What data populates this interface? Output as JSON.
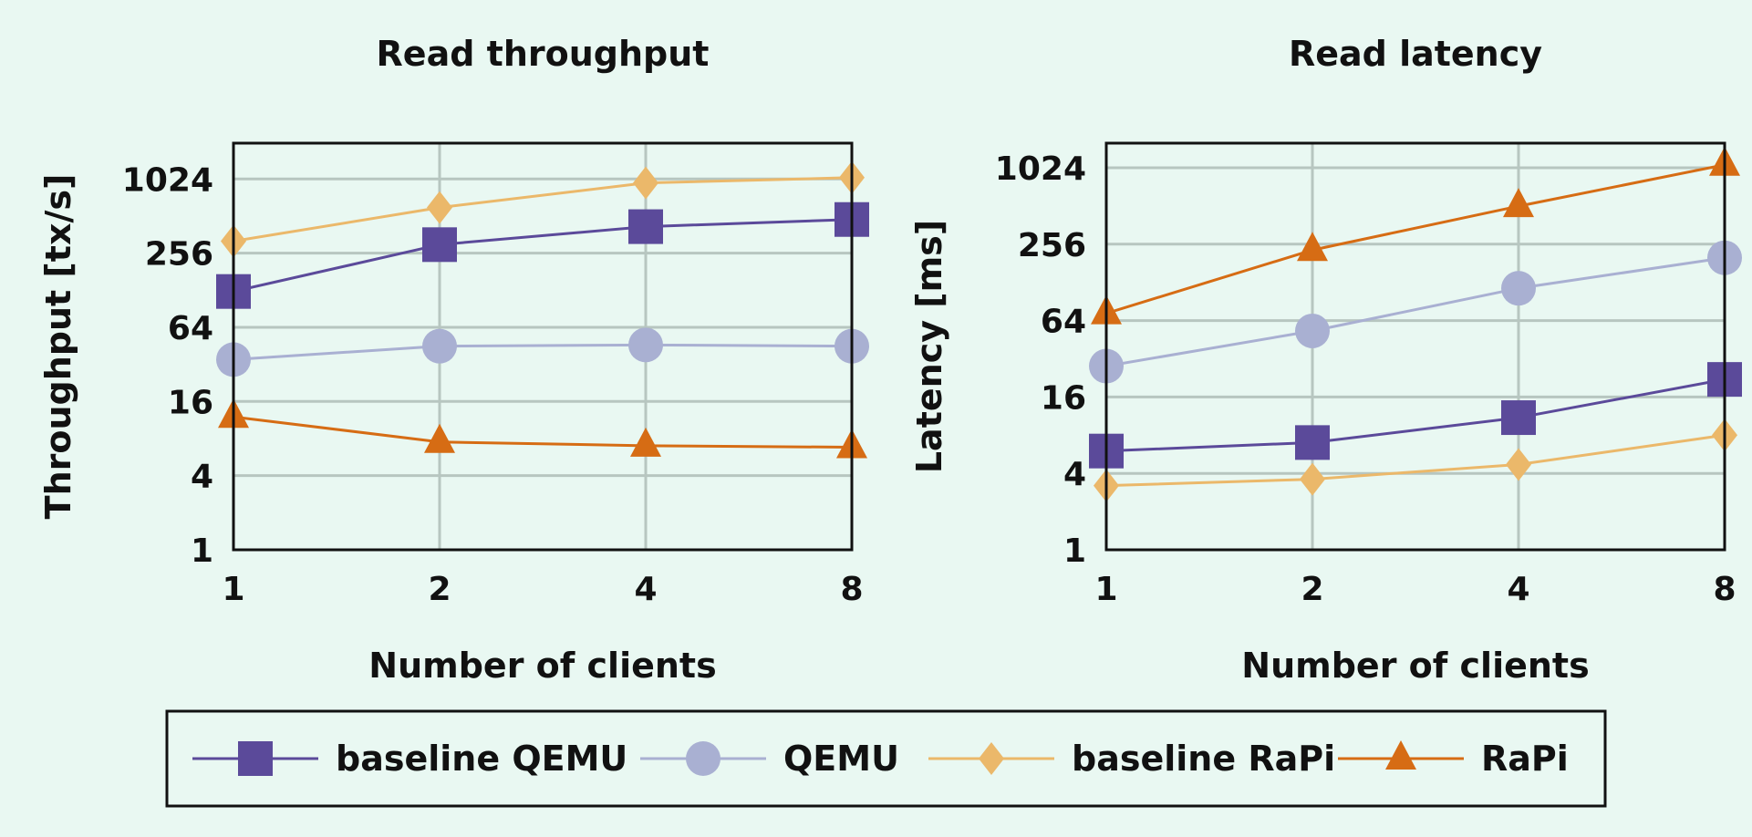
{
  "colors": {
    "baseline_qemu": "#5b4a9a",
    "qemu": "#a9b0d2",
    "baseline_rapi": "#ebb86a",
    "rapi": "#d66c14",
    "grid": "#b7c6c0",
    "frame": "#111111",
    "background": "#e9f8f2"
  },
  "legend": {
    "items": [
      {
        "label": "baseline QEMU",
        "marker": "square",
        "color_key": "baseline_qemu"
      },
      {
        "label": "QEMU",
        "marker": "circle",
        "color_key": "qemu"
      },
      {
        "label": "baseline RaPi",
        "marker": "diamond",
        "color_key": "baseline_rapi"
      },
      {
        "label": "RaPi",
        "marker": "triangle",
        "color_key": "rapi"
      }
    ]
  },
  "chart_data": [
    {
      "type": "line",
      "title": "Read throughput",
      "xlabel": "Number of clients",
      "ylabel": "Throughput [tx/s]",
      "x": [
        1,
        2,
        4,
        8
      ],
      "x_ticks": [
        "1",
        "2",
        "4",
        "8"
      ],
      "y_scale": "log2",
      "y_ticks": [
        1,
        4,
        16,
        64,
        256,
        1024
      ],
      "ylim": [
        1,
        2000
      ],
      "grid": true,
      "series": [
        {
          "name": "baseline QEMU",
          "values": [
            125,
            300,
            420,
            480
          ]
        },
        {
          "name": "QEMU",
          "values": [
            35,
            45,
            46,
            45
          ]
        },
        {
          "name": "baseline RaPi",
          "values": [
            320,
            600,
            950,
            1050
          ]
        },
        {
          "name": "RaPi",
          "values": [
            12,
            7.5,
            7,
            6.8
          ]
        }
      ]
    },
    {
      "type": "line",
      "title": "Read latency",
      "xlabel": "Number of clients",
      "ylabel": "Latency [ms]",
      "x": [
        1,
        2,
        4,
        8
      ],
      "x_ticks": [
        "1",
        "2",
        "4",
        "8"
      ],
      "y_scale": "log2",
      "y_ticks": [
        1,
        4,
        16,
        64,
        256,
        1024
      ],
      "ylim": [
        1,
        1600
      ],
      "grid": true,
      "series": [
        {
          "name": "baseline QEMU",
          "values": [
            6,
            7,
            11,
            22
          ]
        },
        {
          "name": "QEMU",
          "values": [
            28,
            53,
            115,
            200
          ]
        },
        {
          "name": "baseline RaPi",
          "values": [
            3.2,
            3.6,
            4.7,
            8
          ]
        },
        {
          "name": "RaPi",
          "values": [
            73,
            230,
            510,
            1080
          ]
        }
      ]
    }
  ]
}
